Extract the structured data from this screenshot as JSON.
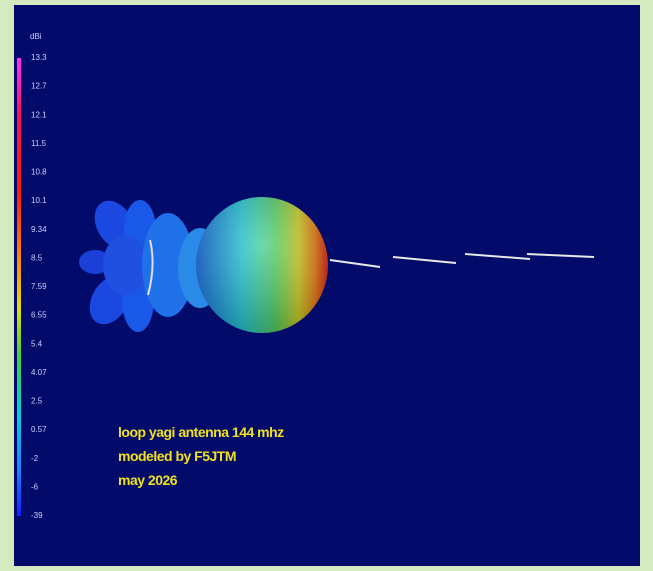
{
  "colorbar": {
    "unit": "dBi",
    "labels": [
      "13.3",
      "12.7",
      "12.1",
      "11.5",
      "10.8",
      "10.1",
      "9.34",
      "8.5",
      "7.59",
      "6.55",
      "5.4",
      "4.07",
      "2.5",
      "0.57",
      "-2",
      "-6",
      "-39"
    ]
  },
  "caption": [
    "loop yagi antenna 144 mhz",
    "modeled by F5JTM",
    "may 2026"
  ]
}
